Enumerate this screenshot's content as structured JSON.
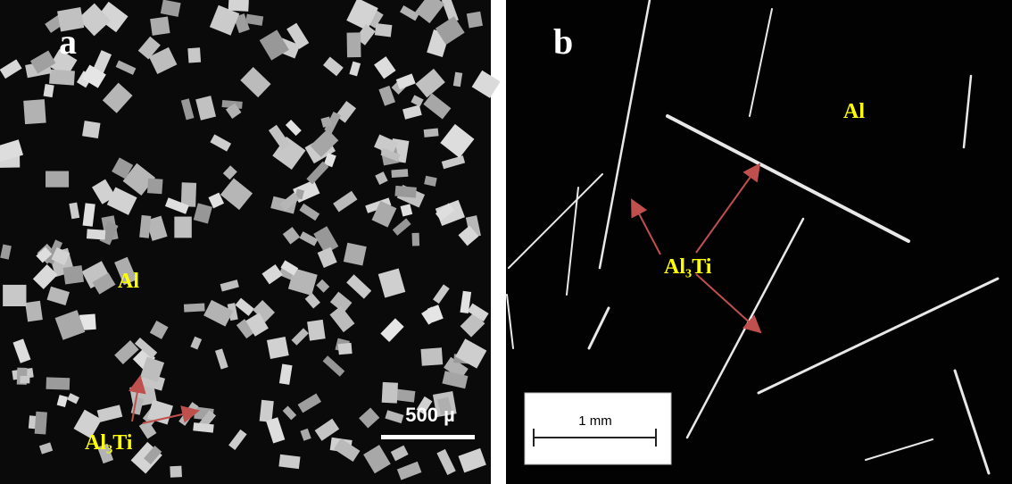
{
  "panels": [
    {
      "label": "a",
      "matrix_label": "Al",
      "phase_label": "Al₃Ti",
      "scale_bar": "500 µ"
    },
    {
      "label": "b",
      "matrix_label": "Al",
      "phase_label": "Al₃Ti",
      "scale_bar": "1 mm"
    }
  ]
}
